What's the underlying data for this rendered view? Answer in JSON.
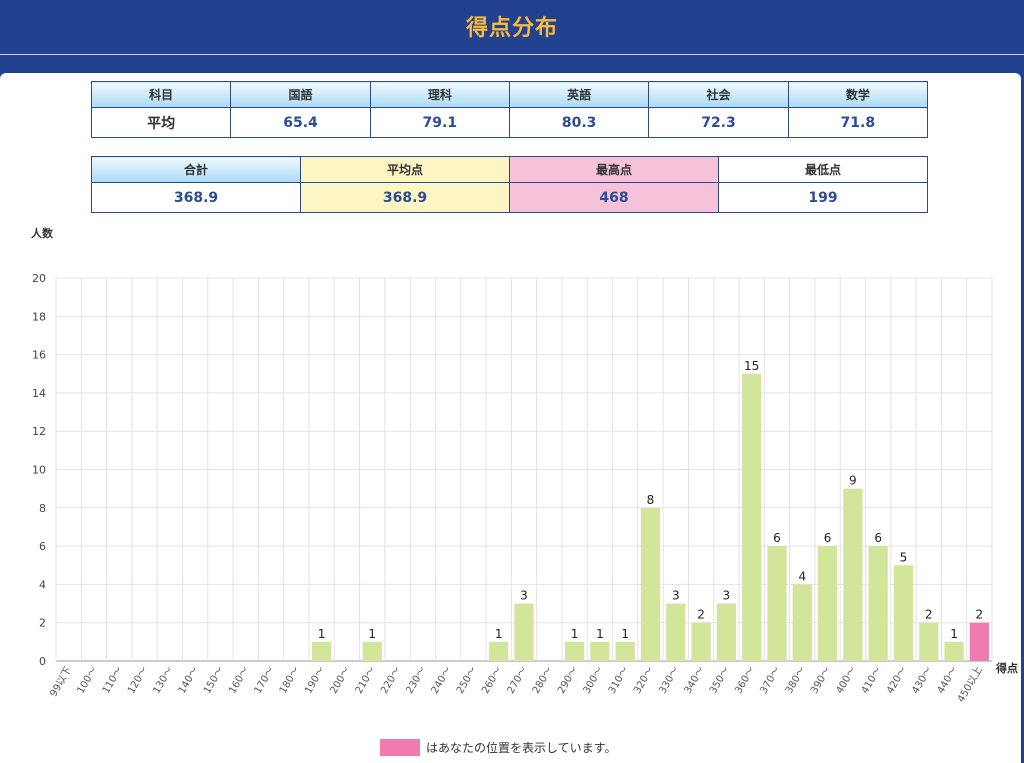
{
  "page_title": "得点分布",
  "subject_table": {
    "header_label": "科目",
    "row_label": "平均",
    "subjects": [
      "国語",
      "理科",
      "英語",
      "社会",
      "数学"
    ],
    "averages": [
      "65.4",
      "79.1",
      "80.3",
      "72.3",
      "71.8"
    ]
  },
  "summary_table": {
    "total_label": "合計",
    "total_value": "368.9",
    "mean_label": "平均点",
    "mean_value": "368.9",
    "max_label": "最高点",
    "max_value": "468",
    "min_label": "最低点",
    "min_value": "199"
  },
  "legend": {
    "text": "はあなたの位置を表示しています。",
    "color": "#f07bb0"
  },
  "colors": {
    "header_bg": "#22418f",
    "title": "#f6b93b",
    "bar": "#d2e59b",
    "highlight_bar": "#f07bb0",
    "value_text": "#2d4c95"
  },
  "chart_data": {
    "type": "bar",
    "ylabel": "人数",
    "xlabel": "得点",
    "ylim": [
      0,
      20
    ],
    "yticks": [
      0,
      2,
      4,
      6,
      8,
      10,
      12,
      14,
      16,
      18,
      20
    ],
    "grid": true,
    "categories": [
      "99以下",
      "100～",
      "110～",
      "120～",
      "130～",
      "140～",
      "150～",
      "160～",
      "170～",
      "180～",
      "190～",
      "200～",
      "210～",
      "220～",
      "230～",
      "240～",
      "250～",
      "260～",
      "270～",
      "280～",
      "290～",
      "300～",
      "310～",
      "320～",
      "330～",
      "340～",
      "350～",
      "360～",
      "370～",
      "380～",
      "390～",
      "400～",
      "410～",
      "420～",
      "430～",
      "440～",
      "450以上"
    ],
    "values": [
      0,
      0,
      0,
      0,
      0,
      0,
      0,
      0,
      0,
      0,
      1,
      0,
      1,
      0,
      0,
      0,
      0,
      1,
      3,
      0,
      1,
      1,
      1,
      8,
      3,
      2,
      3,
      15,
      6,
      4,
      6,
      9,
      6,
      5,
      2,
      1,
      2
    ],
    "highlight_category": "450以上"
  }
}
